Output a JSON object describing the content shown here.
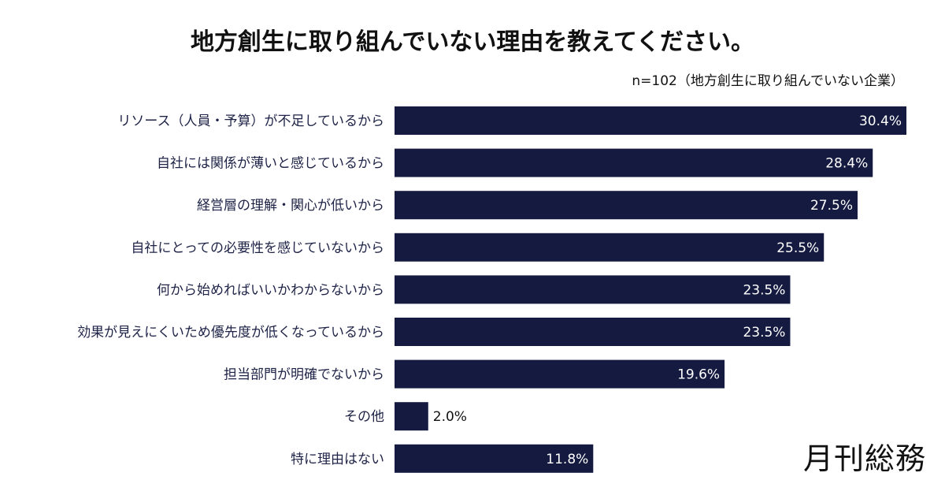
{
  "chart_data": {
    "type": "bar",
    "orientation": "horizontal",
    "title": "地方創生に取り組んでいない理由を教えてください。",
    "subtitle": "n=102（地方創生に取り組んでいない企業）",
    "categories": [
      "リソース（人員・予算）が不足しているから",
      "自社には関係が薄いと感じているから",
      "経営層の理解・関心が低いから",
      "自社にとっての必要性を感じていないから",
      "何から始めればいいかわからないから",
      "効果が見えにくいため優先度が低くなっているから",
      "担当部門が明確でないから",
      "その他",
      "特に理由はない"
    ],
    "values": [
      30.4,
      28.4,
      27.5,
      25.5,
      23.5,
      23.5,
      19.6,
      2.0,
      11.8
    ],
    "data_labels": [
      "30.4%",
      "28.4%",
      "27.5%",
      "25.5%",
      "23.5%",
      "23.5%",
      "19.6%",
      "2.0%",
      "11.8%"
    ],
    "unit": "%",
    "grid": false,
    "bar_color": "#141a40",
    "label_color": "#1e2347"
  },
  "logo": "月刊総務"
}
